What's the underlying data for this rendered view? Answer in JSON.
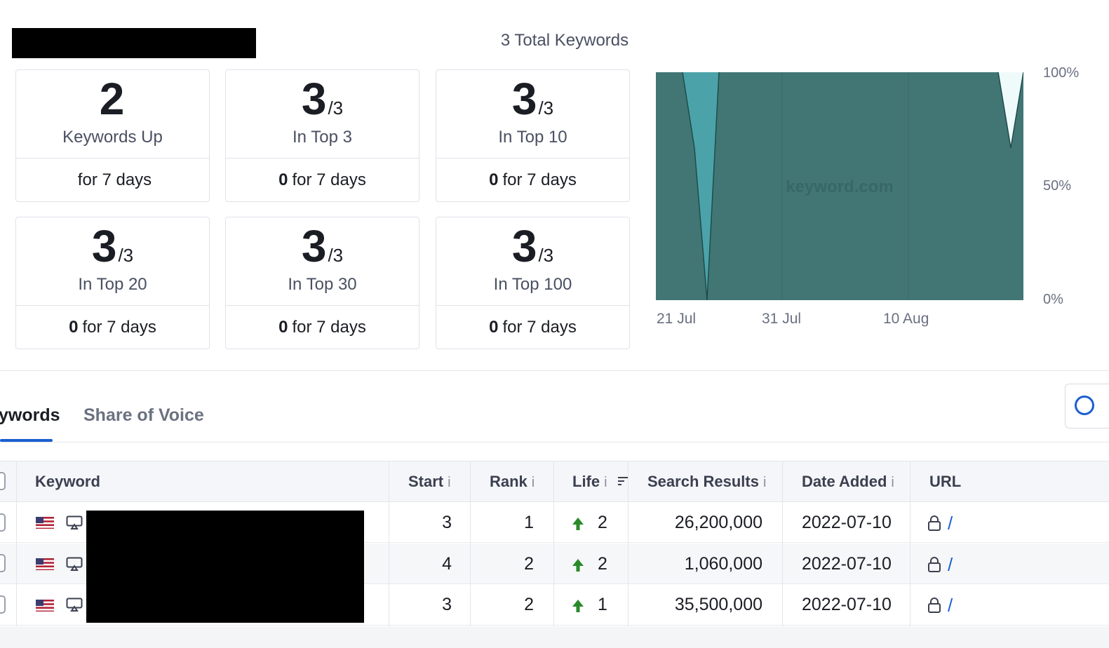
{
  "header": {
    "total_keywords": "3 Total Keywords"
  },
  "cards": [
    {
      "value": "2",
      "denominator": "",
      "label": "Keywords Up",
      "footer_bold": "",
      "footer_text": "for 7 days"
    },
    {
      "value": "3",
      "denominator": "/3",
      "label": "In Top 3",
      "footer_bold": "0",
      "footer_text": "for 7 days"
    },
    {
      "value": "3",
      "denominator": "/3",
      "label": "In Top 10",
      "footer_bold": "0",
      "footer_text": "for 7 days"
    },
    {
      "value": "3",
      "denominator": "/3",
      "label": "In Top 20",
      "footer_bold": "0",
      "footer_text": "for 7 days"
    },
    {
      "value": "3",
      "denominator": "/3",
      "label": "In Top 30",
      "footer_bold": "0",
      "footer_text": "for 7 days"
    },
    {
      "value": "3",
      "denominator": "/3",
      "label": "In Top 100",
      "footer_bold": "0",
      "footer_text": "for 7 days"
    }
  ],
  "chart": {
    "watermark": "keyword.com",
    "y_labels": [
      "100%",
      "50%",
      "0%"
    ],
    "x_labels": [
      "21 Jul",
      "31 Jul",
      "10 Aug"
    ],
    "colors": {
      "main": "#427675",
      "mid": "#4ba3a9",
      "light": "#effbfb",
      "line": "#1e4c4b"
    }
  },
  "tabs": {
    "active": "ywords",
    "inactive": "Share of Voice"
  },
  "table": {
    "headers": {
      "keyword": "Keyword",
      "start": "Start",
      "rank": "Rank",
      "life": "Life",
      "search_results": "Search Results",
      "date_added": "Date Added",
      "url": "URL",
      "info": "i"
    },
    "rows": [
      {
        "start": "3",
        "rank": "1",
        "life": "2",
        "search_results": "26,200,000",
        "date_added": "2022-07-10",
        "url": "/"
      },
      {
        "start": "4",
        "rank": "2",
        "life": "2",
        "search_results": "1,060,000",
        "date_added": "2022-07-10",
        "url": "/"
      },
      {
        "start": "3",
        "rank": "2",
        "life": "1",
        "search_results": "35,500,000",
        "date_added": "2022-07-10",
        "url": "/"
      }
    ]
  },
  "icons": {
    "flag": "us-flag-icon",
    "device": "desktop-icon",
    "lock": "lock-icon",
    "trend": "arrow-up-icon",
    "sort": "sort-icon",
    "search": "search-icon"
  }
}
